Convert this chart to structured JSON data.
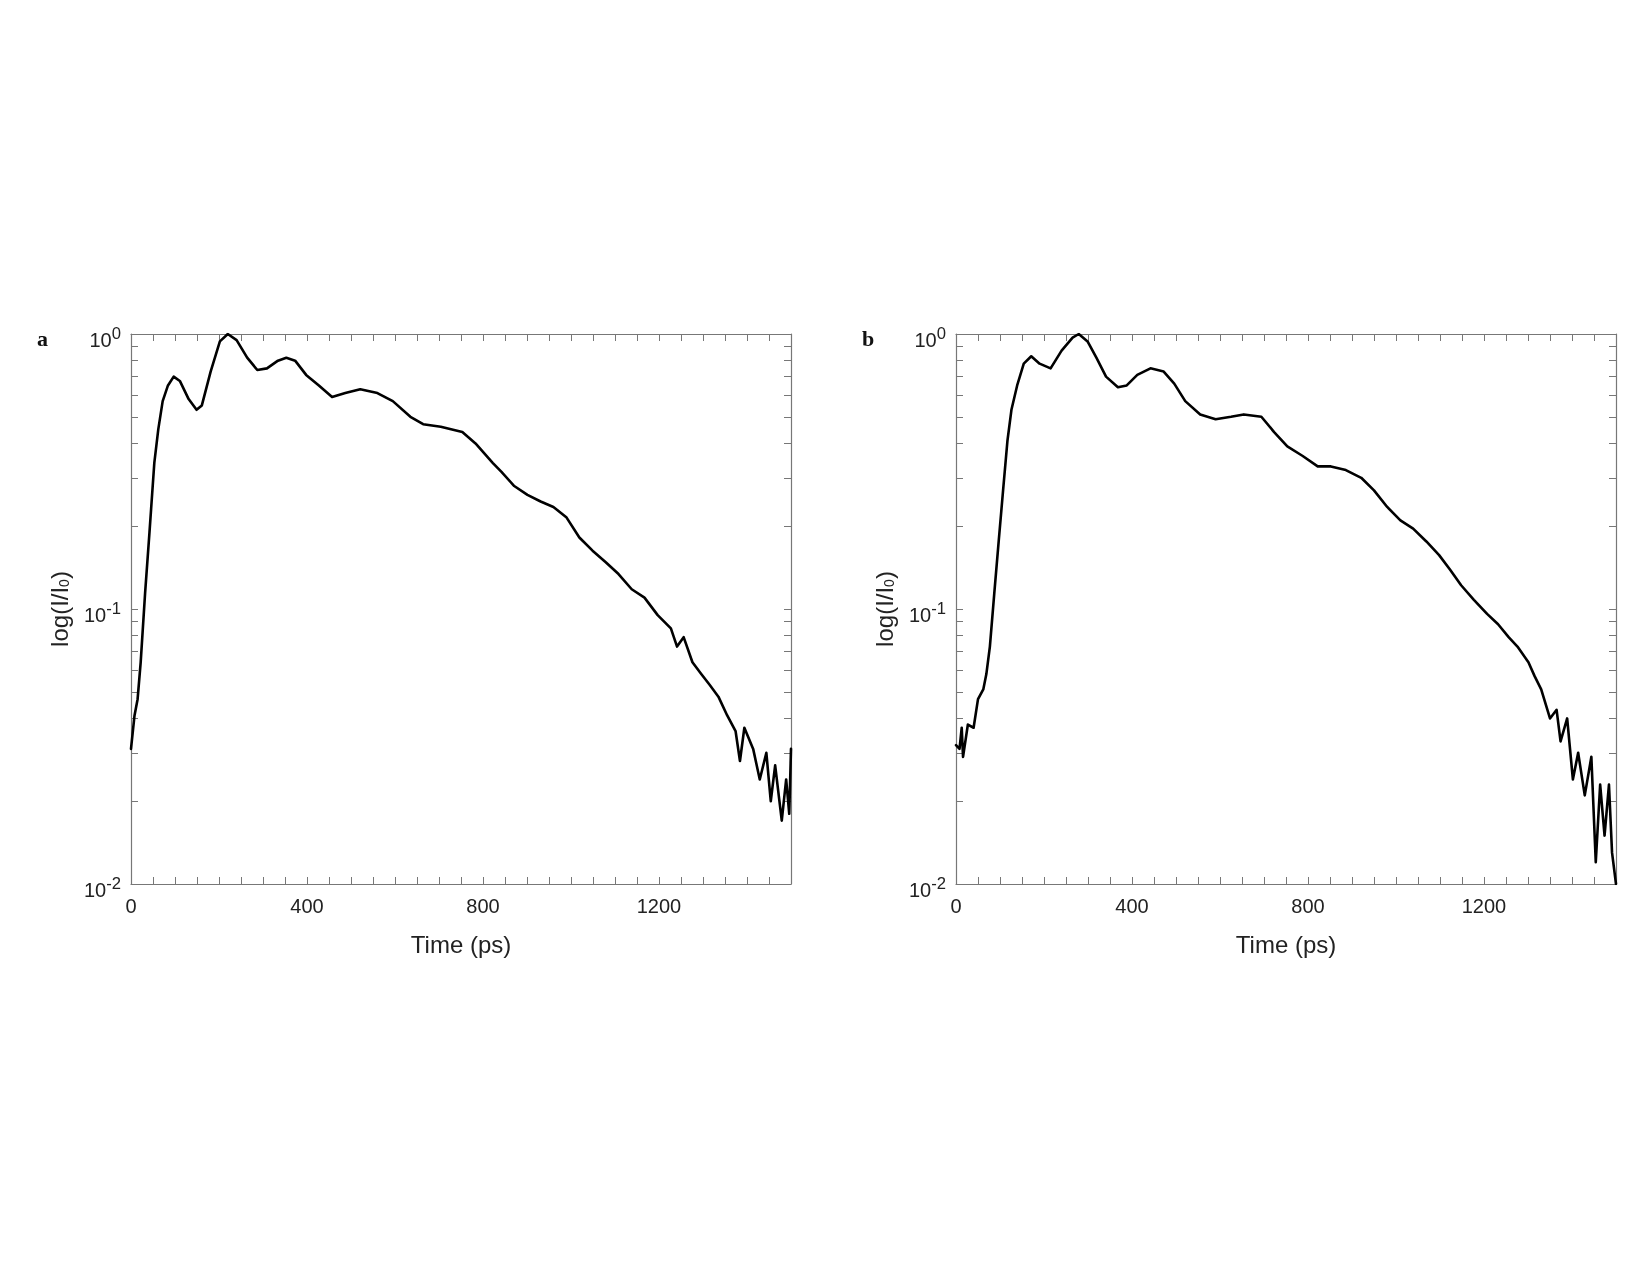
{
  "chart_data": [
    {
      "type": "line",
      "title": "a",
      "xlabel": "Time (ps)",
      "ylabel": "log(I/I$_{0}$)",
      "log": true,
      "color": "#000000",
      "xlim": [
        0,
        1500
      ],
      "ylim": [
        0.01,
        1
      ],
      "xticks": [
        0,
        {
          "value": 50,
          "label": null
        },
        {
          "value": 100,
          "label": null
        },
        {
          "value": 150,
          "label": null
        },
        {
          "value": 200,
          "label": null
        },
        {
          "value": 250,
          "label": null
        },
        {
          "value": 300,
          "label": null
        },
        {
          "value": 350,
          "label": null
        },
        400,
        {
          "value": 450,
          "label": null
        },
        {
          "value": 500,
          "label": null
        },
        {
          "value": 550,
          "label": null
        },
        {
          "value": 600,
          "label": null
        },
        {
          "value": 650,
          "label": null
        },
        {
          "value": 700,
          "label": null
        },
        {
          "value": 750,
          "label": null
        },
        800,
        {
          "value": 850,
          "label": null
        },
        {
          "value": 900,
          "label": null
        },
        {
          "value": 950,
          "label": null
        },
        {
          "value": 1000,
          "label": null
        },
        {
          "value": 1050,
          "label": null
        },
        {
          "value": 1100,
          "label": null
        },
        {
          "value": 1150,
          "label": null
        },
        1200,
        {
          "value": 1250,
          "label": null
        },
        {
          "value": 1300,
          "label": null
        },
        {
          "value": 1350,
          "label": null
        },
        {
          "value": 1400,
          "label": null
        },
        {
          "value": 1450,
          "label": null
        },
        {
          "value": 1500,
          "label": null
        }
      ],
      "yticks": [
        {
          "value": 0.01,
          "label": "10$^{-2}$"
        },
        {
          "value": 0.02,
          "label": null
        },
        {
          "value": 0.03,
          "label": null
        },
        {
          "value": 0.04,
          "label": null
        },
        {
          "value": 0.05,
          "label": null
        },
        {
          "value": 0.06,
          "label": null
        },
        {
          "value": 0.07,
          "label": null
        },
        {
          "value": 0.08,
          "label": null
        },
        {
          "value": 0.09,
          "label": null
        },
        {
          "value": 0.1,
          "label": "10$^{-1}$"
        },
        {
          "value": 0.2,
          "label": null
        },
        {
          "value": 0.3,
          "label": null
        },
        {
          "value": 0.4,
          "label": null
        },
        {
          "value": 0.5,
          "label": null
        },
        {
          "value": 0.6,
          "label": null
        },
        {
          "value": 0.7,
          "label": null
        },
        {
          "value": 0.8,
          "label": null
        },
        {
          "value": 0.9,
          "label": null
        },
        {
          "value": 1,
          "label": "10$^{0}$"
        }
      ],
      "x": [
        0,
        8,
        15,
        22,
        32,
        42,
        53,
        62,
        72,
        84,
        97,
        111,
        131,
        149,
        161,
        181,
        202,
        220,
        240,
        264,
        287,
        309,
        334,
        353,
        373,
        398,
        427,
        457,
        487,
        521,
        560,
        595,
        635,
        664,
        704,
        753,
        783,
        822,
        842,
        871,
        901,
        931,
        960,
        990,
        1019,
        1049,
        1079,
        1108,
        1138,
        1167,
        1197,
        1227,
        1241,
        1256,
        1276,
        1296,
        1315,
        1335,
        1355,
        1374,
        1384,
        1394,
        1414,
        1429,
        1444,
        1454,
        1464,
        1479,
        1489,
        1496,
        1500
      ],
      "values": [
        0.031,
        0.041,
        0.047,
        0.064,
        0.114,
        0.19,
        0.34,
        0.45,
        0.57,
        0.65,
        0.7,
        0.675,
        0.58,
        0.53,
        0.55,
        0.73,
        0.94,
        1.0,
        0.95,
        0.82,
        0.74,
        0.75,
        0.8,
        0.82,
        0.8,
        0.71,
        0.65,
        0.59,
        0.61,
        0.63,
        0.61,
        0.57,
        0.5,
        0.47,
        0.46,
        0.44,
        0.4,
        0.34,
        0.315,
        0.28,
        0.26,
        0.246,
        0.235,
        0.215,
        0.182,
        0.163,
        0.148,
        0.134,
        0.118,
        0.11,
        0.095,
        0.085,
        0.073,
        0.079,
        0.064,
        0.058,
        0.053,
        0.048,
        0.041,
        0.036,
        0.028,
        0.037,
        0.031,
        0.024,
        0.03,
        0.02,
        0.027,
        0.017,
        0.024,
        0.018,
        0.031
      ]
    },
    {
      "type": "line",
      "title": "b",
      "xlabel": "Time (ps)",
      "ylabel": "log(I/I$_{0}$)",
      "log": true,
      "color": "#000000",
      "xlim": [
        0,
        1500
      ],
      "ylim": [
        0.01,
        1
      ],
      "xticks": [
        0,
        {
          "value": 50,
          "label": null
        },
        {
          "value": 100,
          "label": null
        },
        {
          "value": 150,
          "label": null
        },
        {
          "value": 200,
          "label": null
        },
        {
          "value": 250,
          "label": null
        },
        {
          "value": 300,
          "label": null
        },
        {
          "value": 350,
          "label": null
        },
        400,
        {
          "value": 450,
          "label": null
        },
        {
          "value": 500,
          "label": null
        },
        {
          "value": 550,
          "label": null
        },
        {
          "value": 600,
          "label": null
        },
        {
          "value": 650,
          "label": null
        },
        {
          "value": 700,
          "label": null
        },
        {
          "value": 750,
          "label": null
        },
        800,
        {
          "value": 850,
          "label": null
        },
        {
          "value": 900,
          "label": null
        },
        {
          "value": 950,
          "label": null
        },
        {
          "value": 1000,
          "label": null
        },
        {
          "value": 1050,
          "label": null
        },
        {
          "value": 1100,
          "label": null
        },
        {
          "value": 1150,
          "label": null
        },
        1200,
        {
          "value": 1250,
          "label": null
        },
        {
          "value": 1300,
          "label": null
        },
        {
          "value": 1350,
          "label": null
        },
        {
          "value": 1400,
          "label": null
        },
        {
          "value": 1450,
          "label": null
        },
        {
          "value": 1500,
          "label": null
        }
      ],
      "yticks": [
        {
          "value": 0.01,
          "label": "10$^{-2}$"
        },
        {
          "value": 0.02,
          "label": null
        },
        {
          "value": 0.03,
          "label": null
        },
        {
          "value": 0.04,
          "label": null
        },
        {
          "value": 0.05,
          "label": null
        },
        {
          "value": 0.06,
          "label": null
        },
        {
          "value": 0.07,
          "label": null
        },
        {
          "value": 0.08,
          "label": null
        },
        {
          "value": 0.09,
          "label": null
        },
        {
          "value": 0.1,
          "label": "10$^{-1}$"
        },
        {
          "value": 0.2,
          "label": null
        },
        {
          "value": 0.3,
          "label": null
        },
        {
          "value": 0.4,
          "label": null
        },
        {
          "value": 0.5,
          "label": null
        },
        {
          "value": 0.6,
          "label": null
        },
        {
          "value": 0.7,
          "label": null
        },
        {
          "value": 0.8,
          "label": null
        },
        {
          "value": 0.9,
          "label": null
        },
        {
          "value": 1,
          "label": "10$^{0}$"
        }
      ],
      "x": [
        0,
        8,
        13,
        16,
        27,
        40,
        50,
        62,
        69,
        77,
        87,
        97,
        107,
        117,
        126,
        139,
        154,
        171,
        190,
        215,
        240,
        265,
        279,
        299,
        319,
        341,
        368,
        388,
        412,
        442,
        472,
        496,
        521,
        555,
        590,
        625,
        654,
        694,
        723,
        753,
        788,
        822,
        852,
        886,
        921,
        950,
        980,
        1010,
        1039,
        1069,
        1098,
        1123,
        1148,
        1177,
        1207,
        1232,
        1256,
        1276,
        1301,
        1315,
        1330,
        1350,
        1365,
        1374,
        1389,
        1402,
        1414,
        1429,
        1444,
        1454,
        1464,
        1474,
        1484,
        1491,
        1500
      ],
      "values": [
        0.032,
        0.031,
        0.037,
        0.029,
        0.038,
        0.037,
        0.047,
        0.051,
        0.058,
        0.073,
        0.114,
        0.176,
        0.27,
        0.41,
        0.53,
        0.65,
        0.78,
        0.83,
        0.78,
        0.75,
        0.87,
        0.97,
        1.0,
        0.94,
        0.82,
        0.7,
        0.64,
        0.65,
        0.71,
        0.75,
        0.73,
        0.66,
        0.57,
        0.51,
        0.49,
        0.5,
        0.51,
        0.5,
        0.44,
        0.39,
        0.36,
        0.33,
        0.33,
        0.32,
        0.3,
        0.27,
        0.235,
        0.21,
        0.196,
        0.176,
        0.157,
        0.139,
        0.122,
        0.108,
        0.096,
        0.088,
        0.079,
        0.073,
        0.064,
        0.057,
        0.051,
        0.04,
        0.043,
        0.033,
        0.04,
        0.024,
        0.03,
        0.021,
        0.029,
        0.012,
        0.023,
        0.015,
        0.023,
        0.013,
        0.01
      ]
    }
  ]
}
